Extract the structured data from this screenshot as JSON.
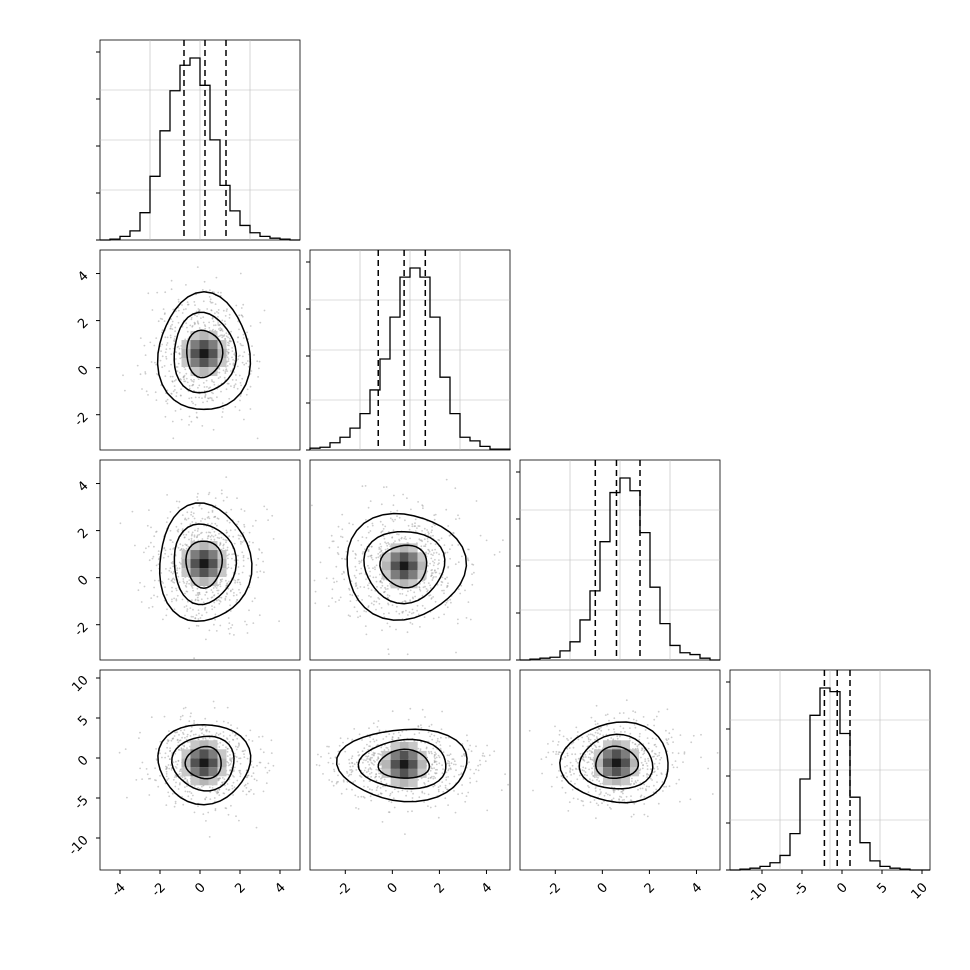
{
  "chart_data": {
    "type": "corner",
    "title": "",
    "n_params": 4,
    "grid": true,
    "params": [
      {
        "xlim": [
          -5,
          5
        ],
        "xticks": [
          "-4",
          "-2",
          "0",
          "2",
          "4"
        ],
        "quantiles": [
          -0.8,
          0.25,
          1.3
        ],
        "hist": [
          0,
          0.005,
          0.02,
          0.05,
          0.15,
          0.35,
          0.6,
          0.82,
          0.96,
          1.0,
          0.85,
          0.55,
          0.3,
          0.16,
          0.08,
          0.04,
          0.02,
          0.01,
          0.005,
          0
        ]
      },
      {
        "xlim": [
          -3.5,
          5
        ],
        "yticks": [
          "-2",
          "0",
          "2",
          "4"
        ],
        "xticks": [
          "-2",
          "0",
          "2",
          "4"
        ],
        "quantiles": [
          -0.6,
          0.5,
          1.4
        ],
        "hist": [
          0.01,
          0.015,
          0.04,
          0.07,
          0.12,
          0.2,
          0.33,
          0.5,
          0.73,
          0.95,
          1.0,
          0.95,
          0.73,
          0.4,
          0.2,
          0.07,
          0.05,
          0.02,
          0.005,
          0.005
        ]
      },
      {
        "xlim": [
          -3.5,
          5
        ],
        "yticks": [
          "-2",
          "0",
          "2",
          "4"
        ],
        "xticks": [
          "-2",
          "0",
          "2",
          "4"
        ],
        "quantiles": [
          -0.3,
          0.6,
          1.6
        ],
        "hist": [
          0,
          0.005,
          0.01,
          0.015,
          0.05,
          0.1,
          0.22,
          0.38,
          0.65,
          0.92,
          1.0,
          0.93,
          0.7,
          0.4,
          0.2,
          0.08,
          0.04,
          0.03,
          0.01,
          0
        ]
      },
      {
        "xlim": [
          -14,
          11
        ],
        "yticks": [
          "-10",
          "-5",
          "0",
          "5",
          "10"
        ],
        "xticks": [
          "-10",
          "-5",
          "0",
          "5",
          "10"
        ],
        "quantiles": [
          -2.2,
          -0.6,
          1.0
        ],
        "hist": [
          0,
          0.005,
          0.01,
          0.02,
          0.04,
          0.08,
          0.2,
          0.5,
          0.85,
          1.0,
          0.98,
          0.75,
          0.4,
          0.15,
          0.05,
          0.02,
          0.01,
          0.005,
          0,
          0
        ]
      }
    ],
    "pairs": [
      {
        "row": 1,
        "col": 0,
        "center": [
          0.2,
          0.6
        ],
        "sigma": [
          1.0,
          1.0
        ]
      },
      {
        "row": 2,
        "col": 0,
        "center": [
          0.2,
          0.6
        ],
        "sigma": [
          1.0,
          1.0
        ]
      },
      {
        "row": 2,
        "col": 1,
        "center": [
          0.5,
          0.5
        ],
        "sigma": [
          1.1,
          0.9
        ]
      },
      {
        "row": 3,
        "col": 0,
        "center": [
          0.2,
          -0.6
        ],
        "sigma": [
          1.0,
          2.0
        ]
      },
      {
        "row": 3,
        "col": 1,
        "center": [
          0.5,
          -0.8
        ],
        "sigma": [
          1.2,
          1.8
        ]
      },
      {
        "row": 3,
        "col": 2,
        "center": [
          0.6,
          -0.6
        ],
        "sigma": [
          1.0,
          2.0
        ]
      }
    ]
  }
}
